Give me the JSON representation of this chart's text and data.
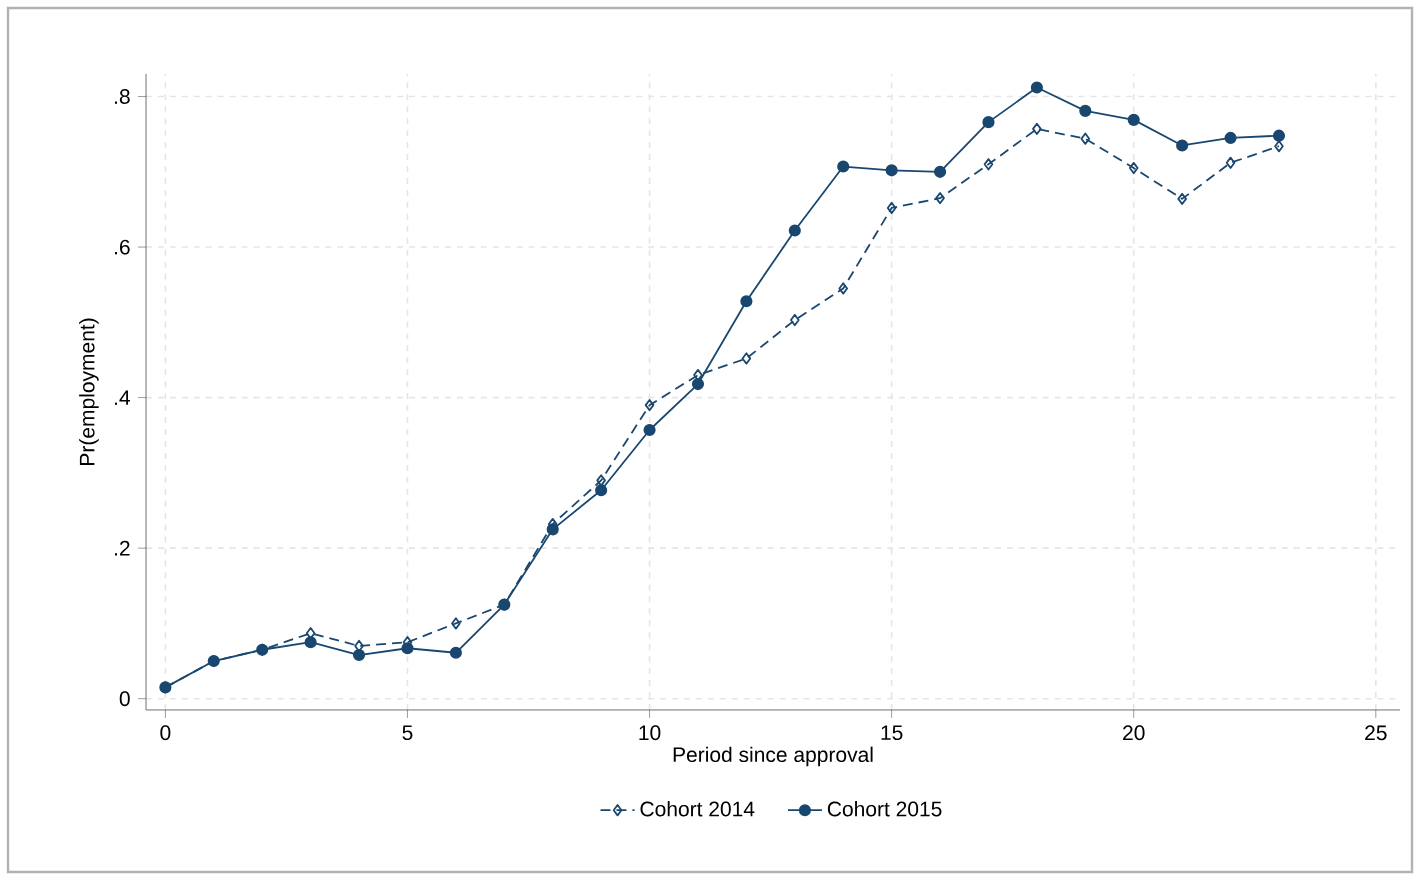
{
  "chart_data": {
    "type": "line",
    "xlabel": "Period since approval",
    "ylabel": "Pr(employment)",
    "x": [
      0,
      1,
      2,
      3,
      4,
      5,
      6,
      7,
      8,
      9,
      10,
      11,
      12,
      13,
      14,
      15,
      16,
      17,
      18,
      19,
      20,
      21,
      22,
      23
    ],
    "series": [
      {
        "name": "Cohort 2014",
        "color": "#1a476f",
        "marker": "diamond",
        "line_style": "dashed",
        "values": [
          0.015,
          0.05,
          0.065,
          0.087,
          0.07,
          0.075,
          0.1,
          0.125,
          0.232,
          0.29,
          0.39,
          0.43,
          0.452,
          0.503,
          0.545,
          0.652,
          0.665,
          0.71,
          0.757,
          0.744,
          0.705,
          0.664,
          0.712,
          0.734
        ]
      },
      {
        "name": "Cohort 2015",
        "color": "#1a476f",
        "marker": "circle",
        "line_style": "solid",
        "values": [
          0.015,
          0.05,
          0.065,
          0.075,
          0.058,
          0.067,
          0.061,
          0.125,
          0.225,
          0.277,
          0.357,
          0.418,
          0.528,
          0.622,
          0.707,
          0.702,
          0.7,
          0.766,
          0.812,
          0.781,
          0.769,
          0.735,
          0.745,
          0.748
        ]
      }
    ],
    "xlim": [
      -0.4,
      25.5
    ],
    "ylim": [
      -0.015,
      0.83
    ],
    "xticks": [
      0,
      5,
      10,
      15,
      20,
      25
    ],
    "yticks": [
      {
        "value": 0,
        "label": "0"
      },
      {
        "value": 0.2,
        "label": ".2"
      },
      {
        "value": 0.4,
        "label": ".4"
      },
      {
        "value": 0.6,
        "label": ".6"
      },
      {
        "value": 0.8,
        "label": ".8"
      }
    ],
    "grid": true,
    "legend": "bottom"
  }
}
